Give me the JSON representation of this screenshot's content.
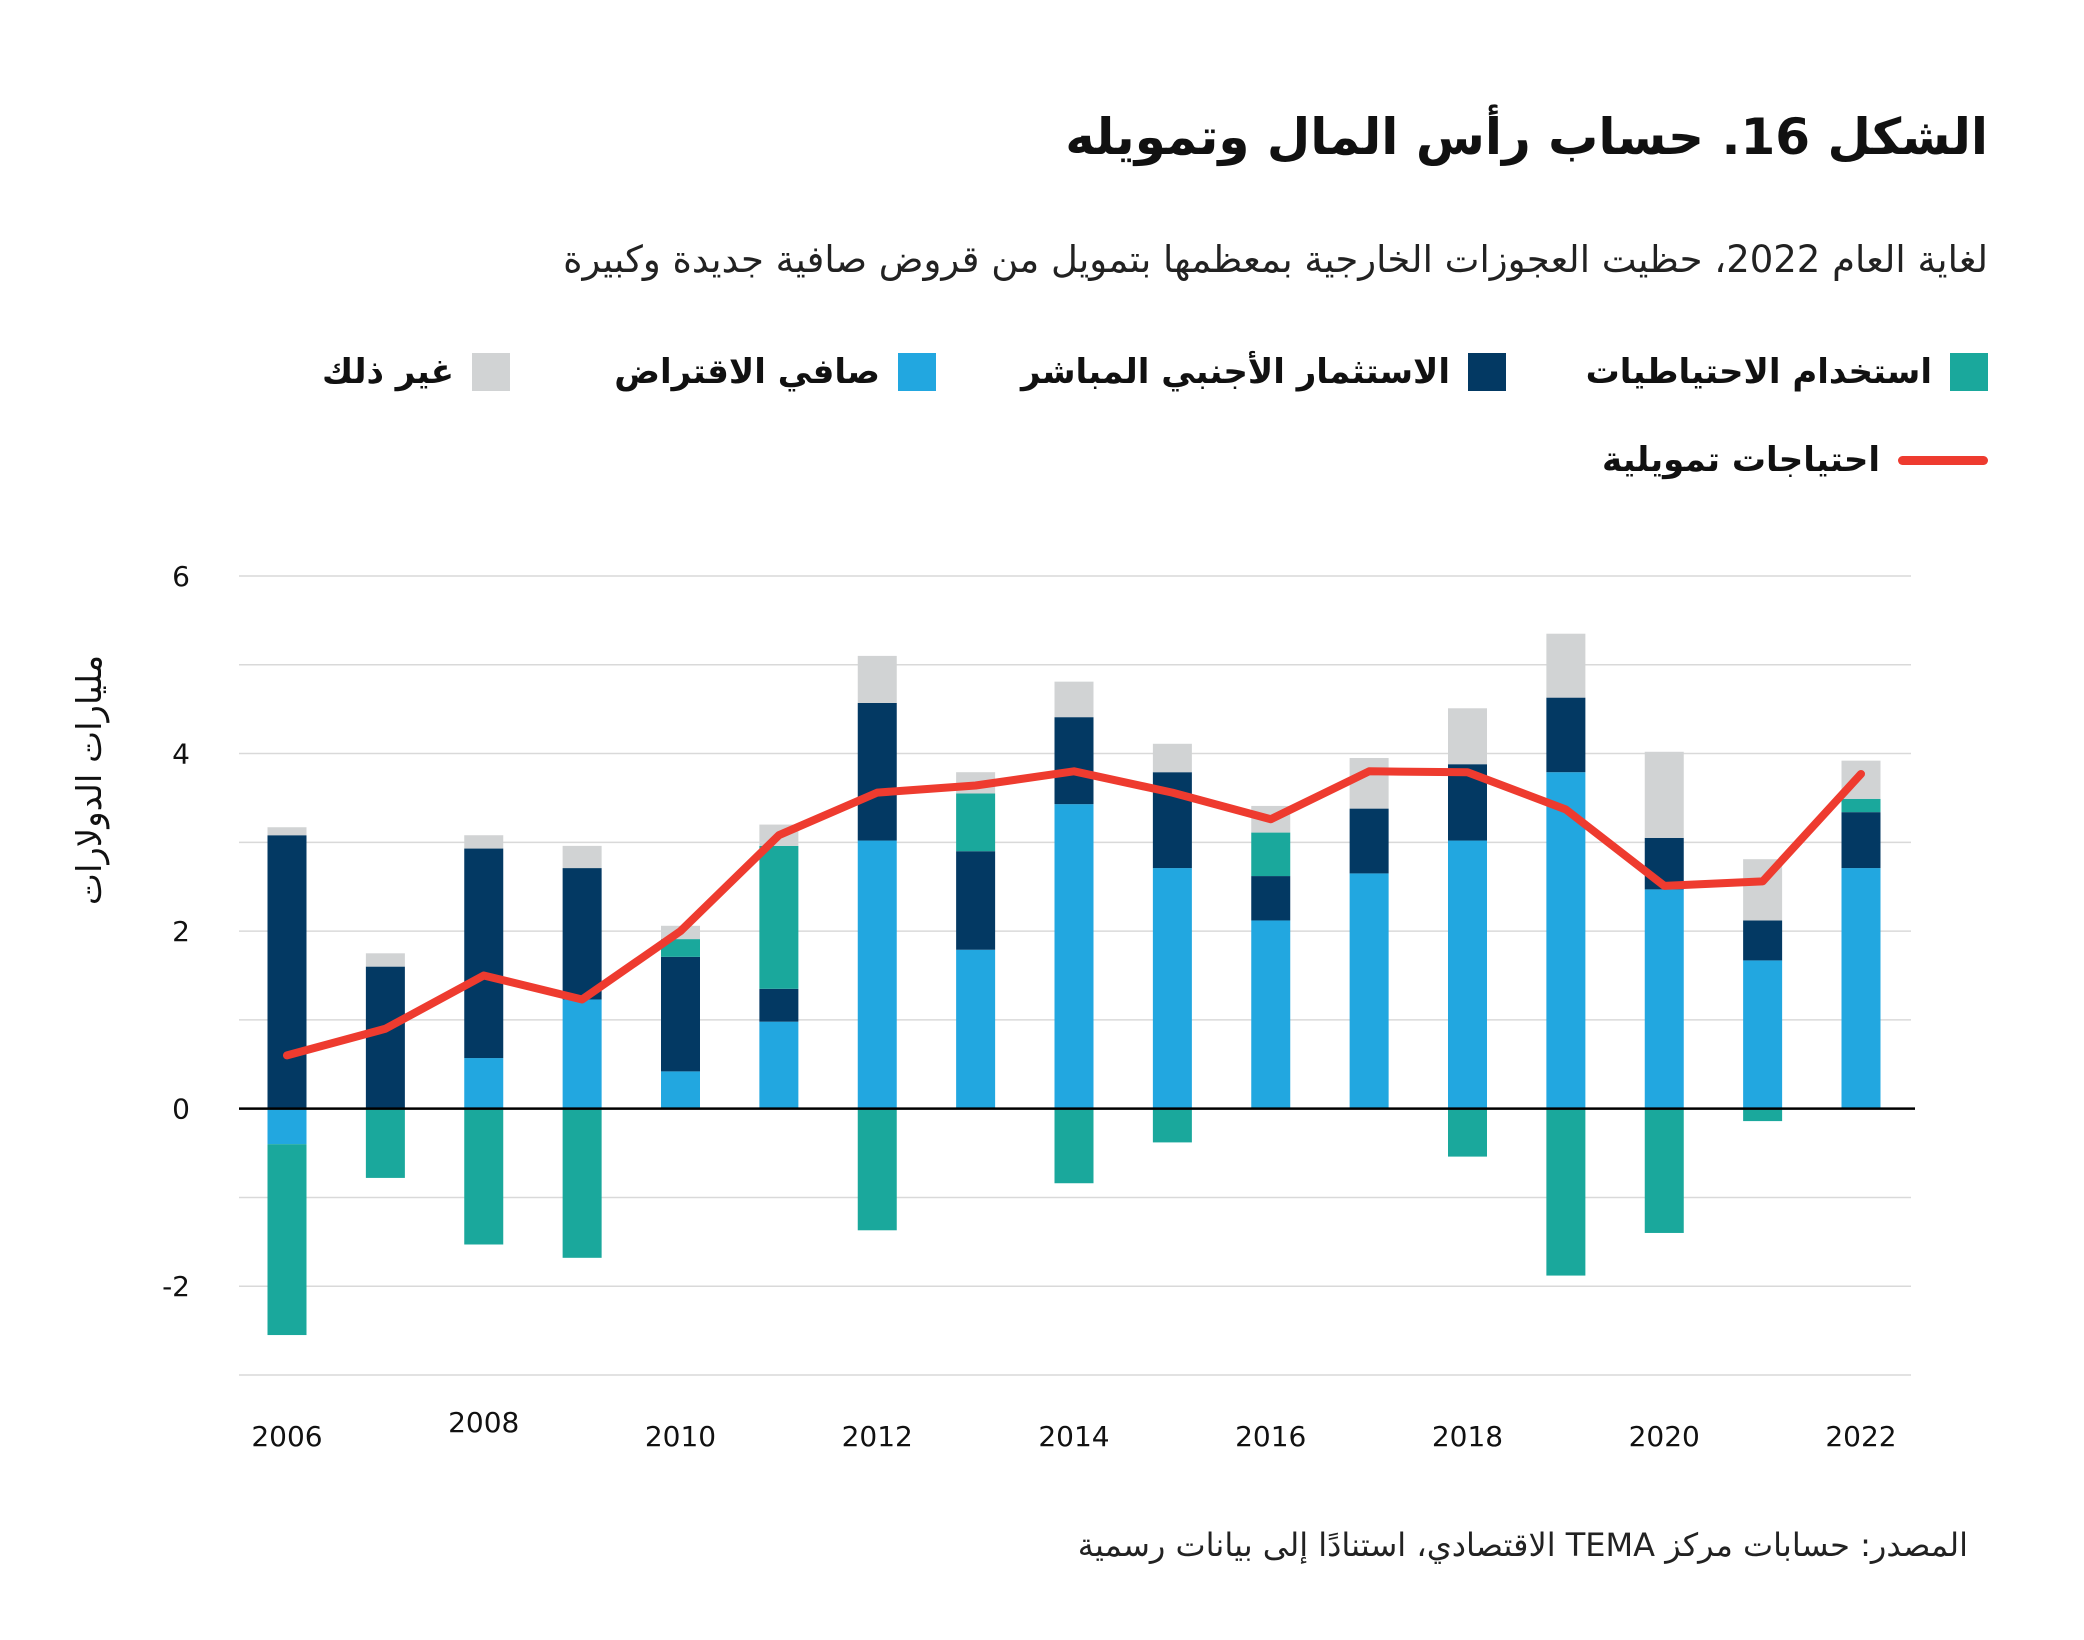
{
  "title": "الشكل 16. حساب رأس المال وتمويله",
  "subtitle": "لغاية العام 2022، حظيت العجوزات الخارجية بمعظمها بتمويل من قروض صافية جديدة وكبيرة",
  "source": "المصدر: حسابات مركز TEMA الاقتصادي، استنادًا إلى بيانات رسمية",
  "chart_data": {
    "type": "bar",
    "stacked": true,
    "ylabel": "مليارات الدولارات",
    "xlabel": "",
    "ylim": [
      -3,
      6
    ],
    "yticks": [
      "6",
      "4",
      "2",
      "0",
      "-2"
    ],
    "ytick_values": [
      6,
      4,
      2,
      0,
      -2
    ],
    "grid": true,
    "legend_position": "top",
    "categories": [
      "2006",
      "2007",
      "2008",
      "2009",
      "2010",
      "2011",
      "2012",
      "2013",
      "2014",
      "2015",
      "2016",
      "2017",
      "2018",
      "2019",
      "2020",
      "2021",
      "2022"
    ],
    "xtick_labels": [
      "2006",
      "2008",
      "2010",
      "2012",
      "2014",
      "2016",
      "2018",
      "2020",
      "2022"
    ],
    "series": [
      {
        "name": "صافي الاقتراض",
        "color": "#22a7e0",
        "values": [
          -0.4,
          0,
          0.57,
          1.23,
          0.42,
          0.98,
          3.02,
          1.79,
          3.43,
          2.71,
          2.12,
          2.65,
          3.02,
          3.79,
          2.47,
          1.67,
          2.71
        ]
      },
      {
        "name": "الاستثمار الأجنبي المباشر",
        "color": "#033963",
        "values": [
          3.08,
          1.6,
          2.36,
          1.48,
          1.29,
          0.37,
          1.55,
          1.11,
          0.98,
          1.08,
          0.5,
          0.73,
          0.86,
          0.84,
          0.58,
          0.45,
          0.63
        ]
      },
      {
        "name": "استخدام الاحتياطيات",
        "color": "#1aa89c",
        "values": [
          -2.15,
          -0.78,
          -1.53,
          -1.68,
          0.2,
          1.61,
          -1.37,
          0.65,
          -0.84,
          -0.38,
          0.49,
          0,
          -0.54,
          -1.88,
          -1.4,
          -0.14,
          0.15
        ]
      },
      {
        "name": "غير ذلك",
        "color": "#d1d3d4",
        "values": [
          0.09,
          0.15,
          0.15,
          0.25,
          0.15,
          0.24,
          0.53,
          0.24,
          0.4,
          0.32,
          0.3,
          0.57,
          0.63,
          0.72,
          0.97,
          0.69,
          0.43
        ]
      }
    ],
    "line": {
      "name": "احتياجات تمويلية",
      "color": "#ee3b2f",
      "values": [
        0.6,
        0.9,
        1.5,
        1.23,
        2.0,
        3.08,
        3.56,
        3.64,
        3.8,
        3.56,
        3.26,
        3.8,
        3.79,
        3.37,
        2.51,
        2.56,
        3.77
      ]
    }
  }
}
